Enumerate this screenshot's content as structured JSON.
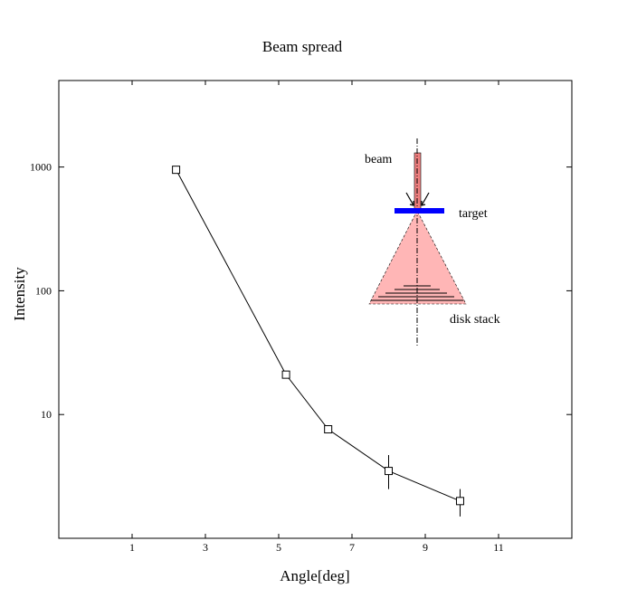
{
  "chart_data": {
    "type": "scatter",
    "title": "Beam spread",
    "xlabel": "Angle[deg]",
    "ylabel": "Intensity",
    "xlim": [
      -1,
      13
    ],
    "ylim": [
      1,
      5000
    ],
    "yscale": "log",
    "x_ticks": [
      1,
      3,
      5,
      7,
      9,
      11
    ],
    "y_ticks": [
      10,
      100,
      1000
    ],
    "grid": false,
    "series": [
      {
        "x": [
          2.2,
          5.2,
          6.35,
          8,
          9.95
        ],
        "y": [
          950,
          21,
          7.6,
          3.5,
          2
        ],
        "yerr_low": [
          0,
          0,
          0.4,
          1.0,
          0.5
        ],
        "yerr_high": [
          0,
          0,
          0.6,
          1.2,
          0.5
        ],
        "marker": "open-square",
        "line": "solid",
        "color": "#000000"
      }
    ],
    "inset": {
      "labels": {
        "beam": "beam",
        "target": "target",
        "disk_stack": "disk stack"
      },
      "colors": {
        "beam": "#f08080",
        "target": "#0000ff",
        "cone": "#ffb6b6"
      }
    }
  }
}
